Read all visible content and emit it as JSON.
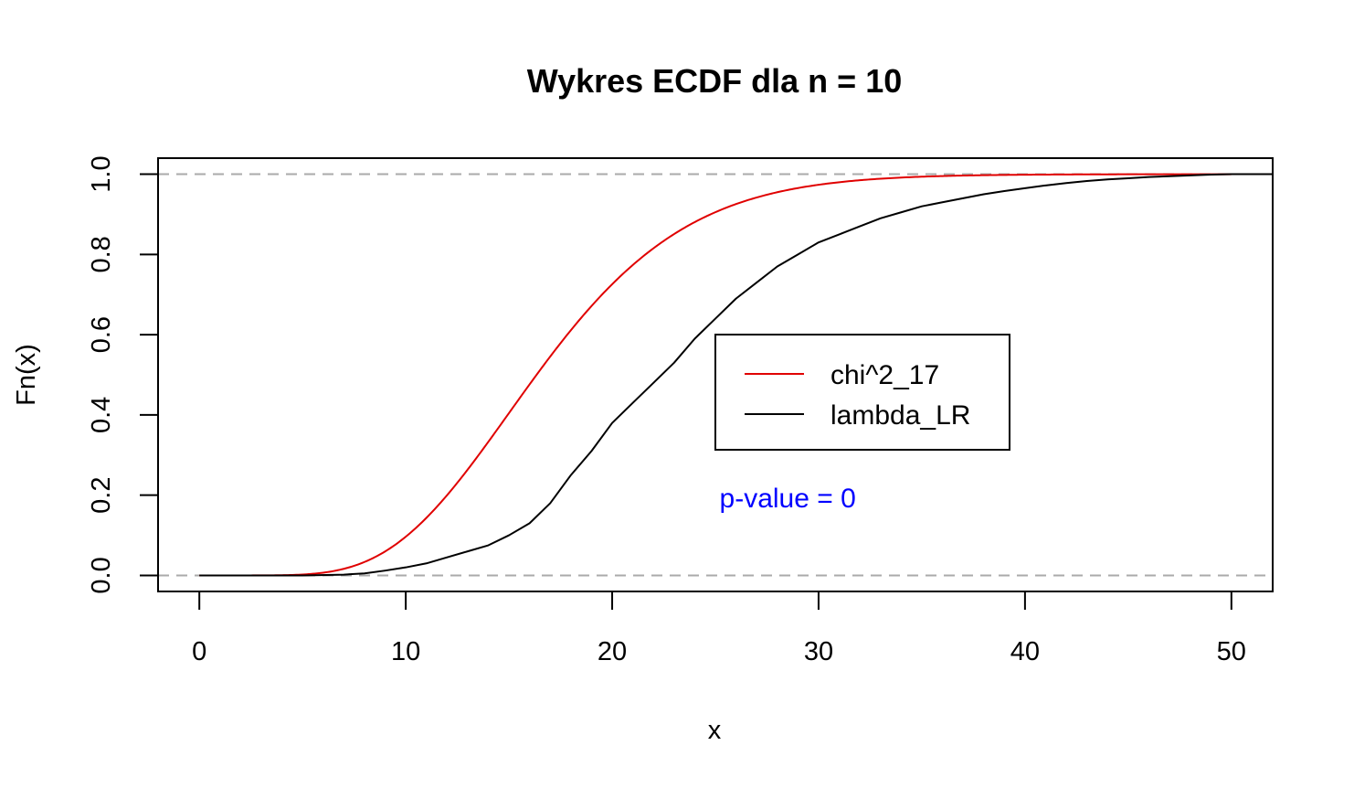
{
  "chart_data": {
    "type": "line",
    "title": "Wykres ECDF dla n = 10",
    "xlabel": "x",
    "ylabel": "Fn(x)",
    "xlim": [
      -2,
      52
    ],
    "ylim": [
      -0.04,
      1.04
    ],
    "x_ticks": [
      0,
      10,
      20,
      30,
      40,
      50
    ],
    "y_ticks": [
      0.0,
      0.2,
      0.4,
      0.6,
      0.8,
      1.0
    ],
    "x_tick_labels": [
      "0",
      "10",
      "20",
      "30",
      "40",
      "50"
    ],
    "y_tick_labels": [
      "0.0",
      "0.2",
      "0.4",
      "0.6",
      "0.8",
      "1.0"
    ],
    "reference_lines": [
      0,
      1
    ],
    "reference_line_color": "#aaaaaa",
    "grid": false,
    "legend_position": "center-right",
    "series": [
      {
        "name": "chi^2_17",
        "color": "#e00000",
        "kind": "cdf",
        "distribution": "chi-squared",
        "df": 17,
        "x_range": [
          0,
          50
        ]
      },
      {
        "name": "lambda_LR",
        "color": "#000000",
        "kind": "ecdf",
        "points": [
          [
            0,
            0.0
          ],
          [
            5,
            0.0
          ],
          [
            7,
            0.002
          ],
          [
            8,
            0.005
          ],
          [
            9,
            0.012
          ],
          [
            10,
            0.02
          ],
          [
            11,
            0.03
          ],
          [
            12,
            0.045
          ],
          [
            13,
            0.06
          ],
          [
            14,
            0.075
          ],
          [
            15,
            0.1
          ],
          [
            16,
            0.13
          ],
          [
            17,
            0.18
          ],
          [
            18,
            0.25
          ],
          [
            19,
            0.31
          ],
          [
            20,
            0.38
          ],
          [
            21,
            0.43
          ],
          [
            22,
            0.48
          ],
          [
            23,
            0.53
          ],
          [
            24,
            0.59
          ],
          [
            25,
            0.64
          ],
          [
            26,
            0.69
          ],
          [
            27,
            0.73
          ],
          [
            28,
            0.77
          ],
          [
            29,
            0.8
          ],
          [
            30,
            0.83
          ],
          [
            31,
            0.85
          ],
          [
            32,
            0.87
          ],
          [
            33,
            0.89
          ],
          [
            34,
            0.905
          ],
          [
            35,
            0.92
          ],
          [
            36,
            0.93
          ],
          [
            37,
            0.94
          ],
          [
            38,
            0.95
          ],
          [
            39,
            0.958
          ],
          [
            40,
            0.965
          ],
          [
            41,
            0.972
          ],
          [
            42,
            0.978
          ],
          [
            43,
            0.983
          ],
          [
            44,
            0.987
          ],
          [
            45,
            0.99
          ],
          [
            46,
            0.993
          ],
          [
            47,
            0.995
          ],
          [
            48,
            0.997
          ],
          [
            49,
            0.999
          ],
          [
            50,
            1.0
          ],
          [
            52,
            1.0
          ]
        ]
      }
    ],
    "annotation": {
      "text": "p-value = 0",
      "color": "#0000ff",
      "x": 25.2,
      "y": 0.17
    }
  }
}
